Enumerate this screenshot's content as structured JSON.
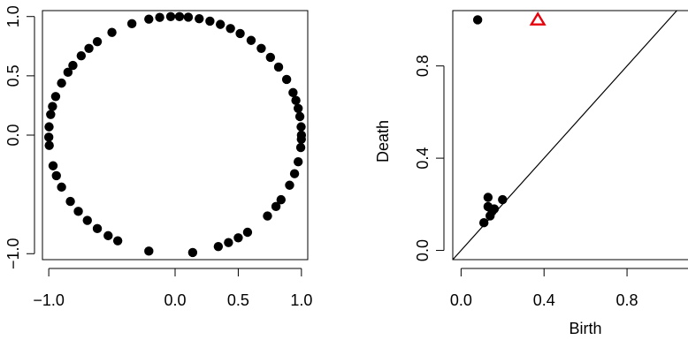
{
  "chart_data": [
    {
      "type": "scatter",
      "title": "",
      "xlabel": "",
      "ylabel": "",
      "xlim": [
        -1.05,
        1.05
      ],
      "ylim": [
        -1.05,
        1.05
      ],
      "x_ticks": [
        -1.0,
        0.0,
        0.5,
        1.0
      ],
      "x_tick_labels": [
        "−1.0",
        "0.0",
        "0.5",
        "1.0"
      ],
      "y_ticks": [
        -1.0,
        0.0,
        0.5,
        1.0
      ],
      "y_tick_labels": [
        "−1.0",
        "0.0",
        "0.5",
        "1.0"
      ],
      "grid": false,
      "legend": "none",
      "point_color": "#000000",
      "points_angles_deg": [
        0,
        4,
        9,
        13,
        17,
        21,
        28,
        35,
        41,
        47,
        53,
        59,
        64,
        69,
        74,
        79,
        84,
        88,
        92,
        97,
        102,
        110,
        120,
        128,
        133,
        138,
        144,
        148,
        154,
        161,
        166,
        170,
        176,
        181,
        185,
        195,
        200,
        206,
        214,
        220,
        226,
        232,
        238,
        243,
        258,
        278,
        290,
        295,
        300,
        305,
        317,
        323,
        327,
        335,
        341,
        347,
        354,
        358
      ]
    },
    {
      "type": "scatter",
      "title": "",
      "xlabel": "Birth",
      "ylabel": "Death",
      "xlim": [
        -0.04,
        1.04
      ],
      "ylim": [
        -0.04,
        1.04
      ],
      "x_ticks": [
        0.0,
        0.4,
        0.8
      ],
      "x_tick_labels": [
        "0.0",
        "0.4",
        "0.8"
      ],
      "y_ticks": [
        0.0,
        0.4,
        0.8
      ],
      "y_tick_labels": [
        "0.0",
        "0.4",
        "0.8"
      ],
      "grid": false,
      "legend": "none",
      "diagonal": true,
      "series": [
        {
          "marker": "filled-circle",
          "color": "#000000",
          "points": [
            [
              0.08,
              1.0
            ],
            [
              0.11,
              0.12
            ],
            [
              0.13,
              0.23
            ],
            [
              0.13,
              0.19
            ],
            [
              0.14,
              0.15
            ],
            [
              0.15,
              0.17
            ],
            [
              0.16,
              0.18
            ],
            [
              0.2,
              0.22
            ]
          ]
        },
        {
          "marker": "open-triangle",
          "color": "#e8000b",
          "points": [
            [
              0.37,
              1.0
            ]
          ]
        }
      ]
    }
  ]
}
